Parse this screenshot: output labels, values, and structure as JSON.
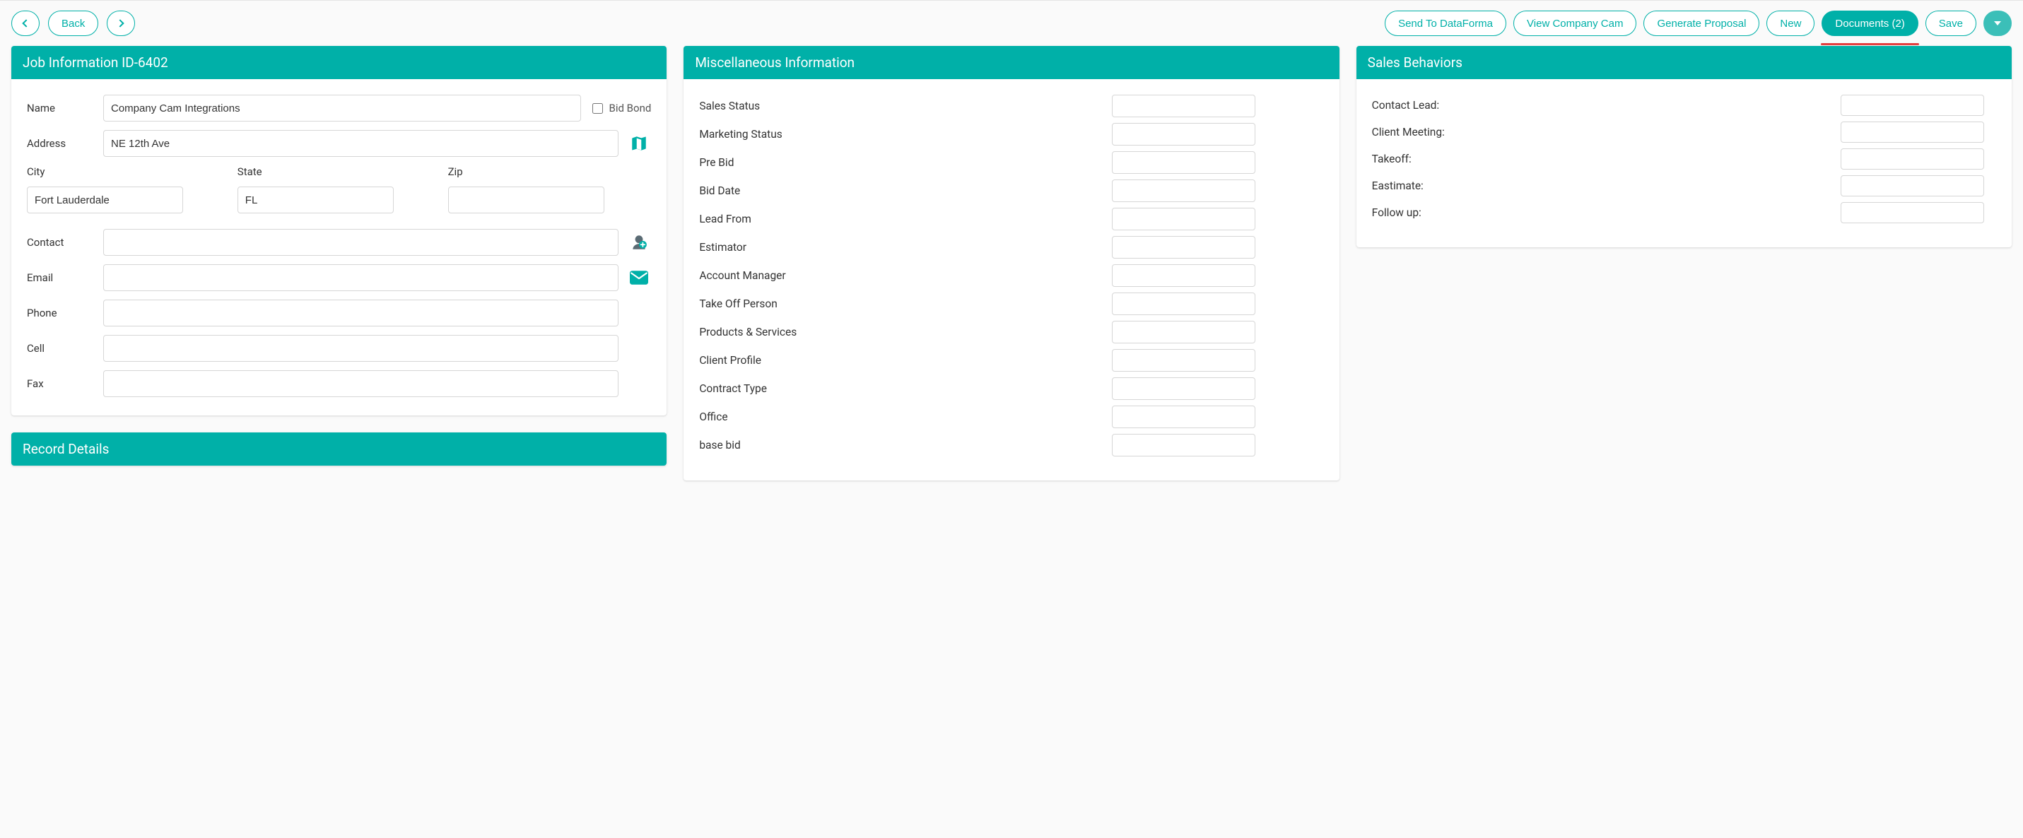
{
  "colors": {
    "accent": "#00b0a8",
    "accent_dim": "#3bbfb8",
    "highlight_underline": "#e53e3e",
    "panel_header_bg": "#00b0a8",
    "panel_header_text": "#ffffff",
    "body_bg": "#fafafa",
    "input_border": "#d6d6d6"
  },
  "toolbar": {
    "back_label": "Back",
    "buttons": {
      "send_dataforma": "Send To DataForma",
      "view_company_cam": "View Company Cam",
      "generate_proposal": "Generate Proposal",
      "new": "New",
      "documents": "Documents (2)",
      "save": "Save"
    }
  },
  "job_info": {
    "header": "Job Information ID-6402",
    "labels": {
      "name": "Name",
      "bid_bond": "Bid Bond",
      "address": "Address",
      "city": "City",
      "state": "State",
      "zip": "Zip",
      "contact": "Contact",
      "email": "Email",
      "phone": "Phone",
      "cell": "Cell",
      "fax": "Fax"
    },
    "values": {
      "name": "Company Cam Integrations",
      "bid_bond_checked": false,
      "address": "NE 12th Ave",
      "city": "Fort Lauderdale",
      "state": "FL",
      "zip": "",
      "contact": "",
      "email": "",
      "phone": "",
      "cell": "",
      "fax": ""
    }
  },
  "record_details": {
    "header": "Record Details"
  },
  "misc": {
    "header": "Miscellaneous Information",
    "fields": [
      {
        "label": "Sales Status",
        "value": ""
      },
      {
        "label": "Marketing Status",
        "value": ""
      },
      {
        "label": "Pre Bid",
        "value": ""
      },
      {
        "label": "Bid Date",
        "value": ""
      },
      {
        "label": "Lead From",
        "value": ""
      },
      {
        "label": "Estimator",
        "value": ""
      },
      {
        "label": "Account Manager",
        "value": ""
      },
      {
        "label": "Take Off Person",
        "value": ""
      },
      {
        "label": "Products & Services",
        "value": ""
      },
      {
        "label": "Client Profile",
        "value": ""
      },
      {
        "label": "Contract Type",
        "value": ""
      },
      {
        "label": "Office",
        "value": ""
      },
      {
        "label": "base bid",
        "value": ""
      }
    ]
  },
  "sales": {
    "header": "Sales Behaviors",
    "fields": [
      {
        "label": "Contact Lead:",
        "value": ""
      },
      {
        "label": "Client Meeting:",
        "value": ""
      },
      {
        "label": "Takeoff:",
        "value": ""
      },
      {
        "label": "Eastimate:",
        "value": ""
      },
      {
        "label": "Follow up:",
        "value": ""
      }
    ]
  }
}
